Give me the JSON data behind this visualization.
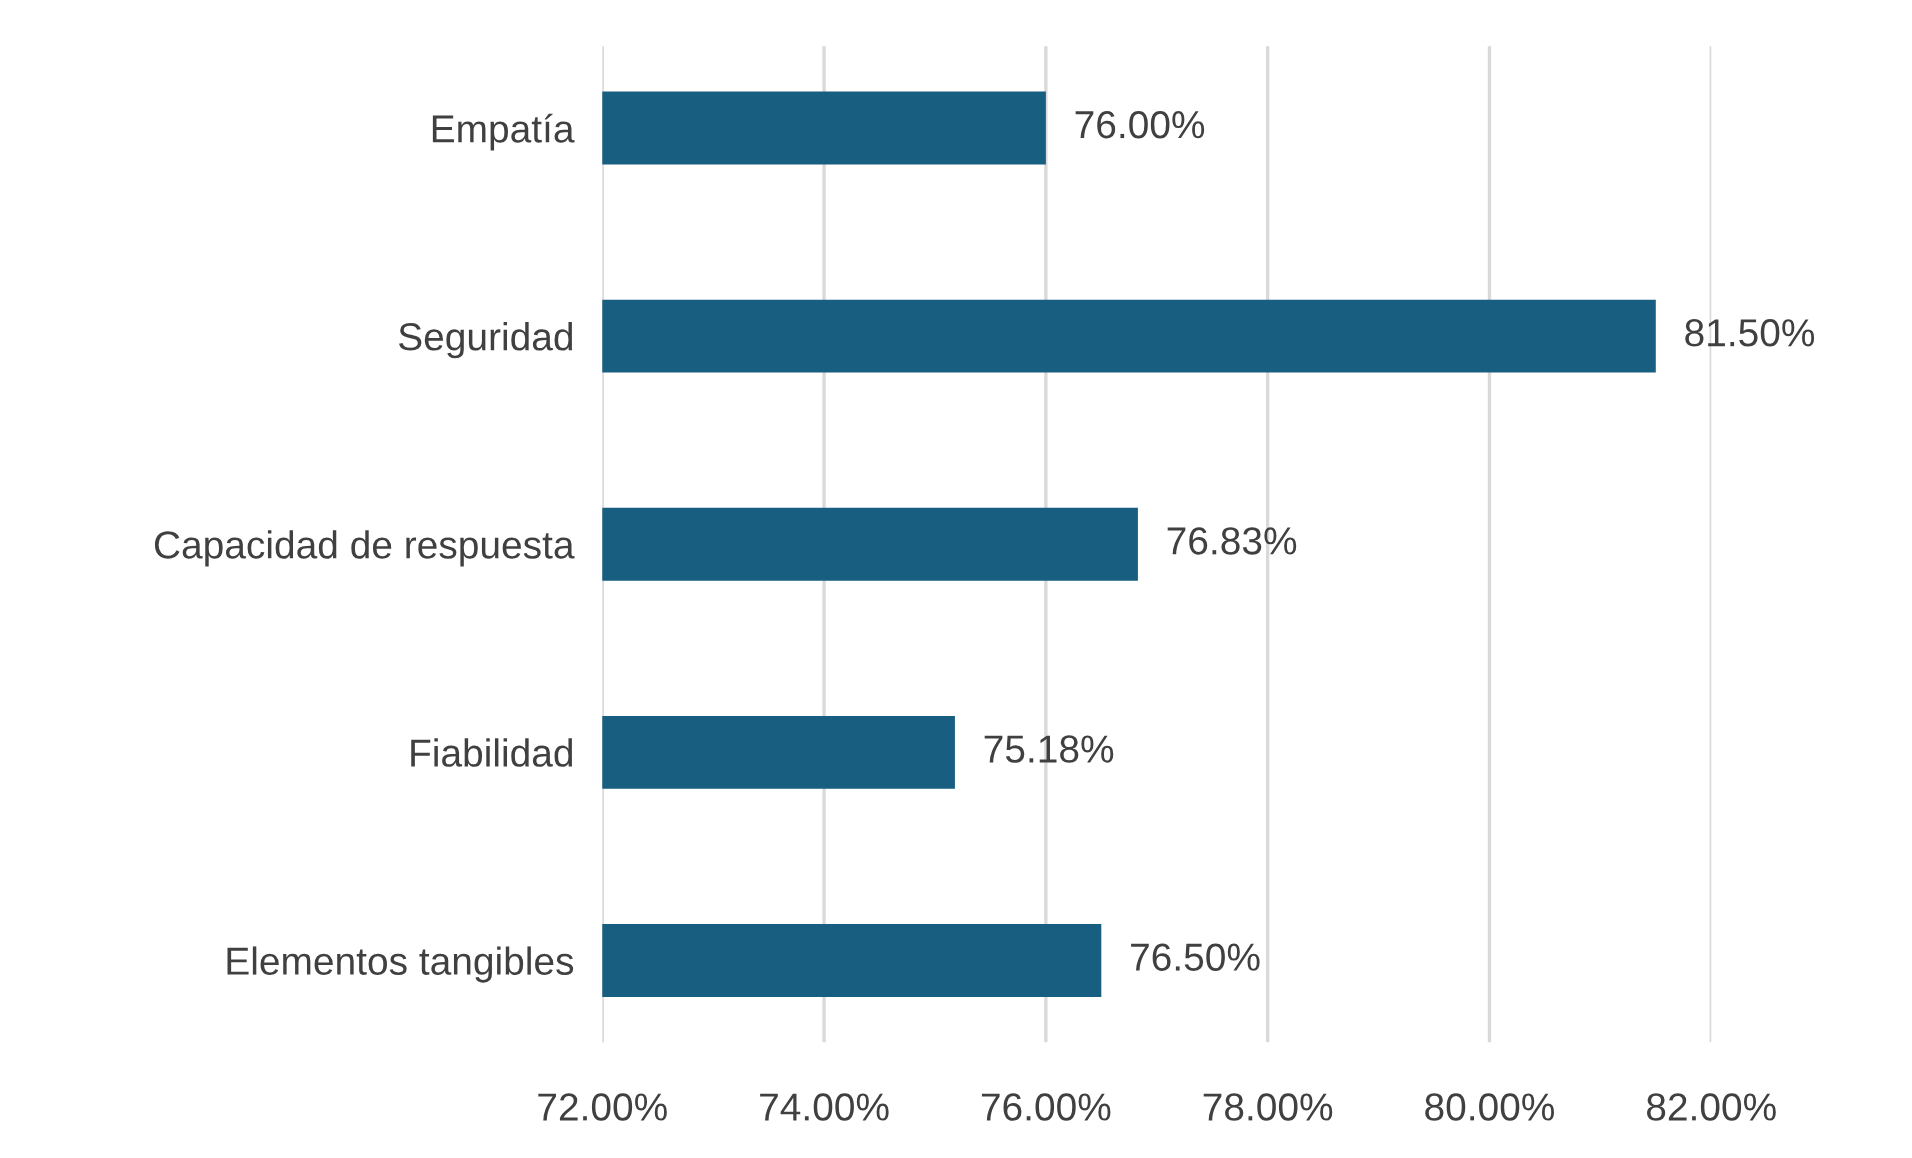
{
  "chart_data": {
    "type": "bar",
    "orientation": "horizontal",
    "categories": [
      "Empatía",
      "Seguridad",
      "Capacidad de respuesta",
      "Fiabilidad",
      "Elementos tangibles"
    ],
    "values": [
      76.0,
      81.5,
      76.83,
      75.18,
      76.5
    ],
    "value_labels": [
      "76.00%",
      "81.50%",
      "76.83%",
      "75.18%",
      "76.50%"
    ],
    "color": "#175e80",
    "xlim": [
      72,
      82
    ],
    "xticks": [
      {
        "value": 72,
        "label": "72.00%"
      },
      {
        "value": 74,
        "label": "74.00%"
      },
      {
        "value": 76,
        "label": "76.00%"
      },
      {
        "value": 78,
        "label": "78.00%"
      },
      {
        "value": 80,
        "label": "80.00%"
      },
      {
        "value": 82,
        "label": "82.00%"
      }
    ],
    "grid": "x"
  }
}
